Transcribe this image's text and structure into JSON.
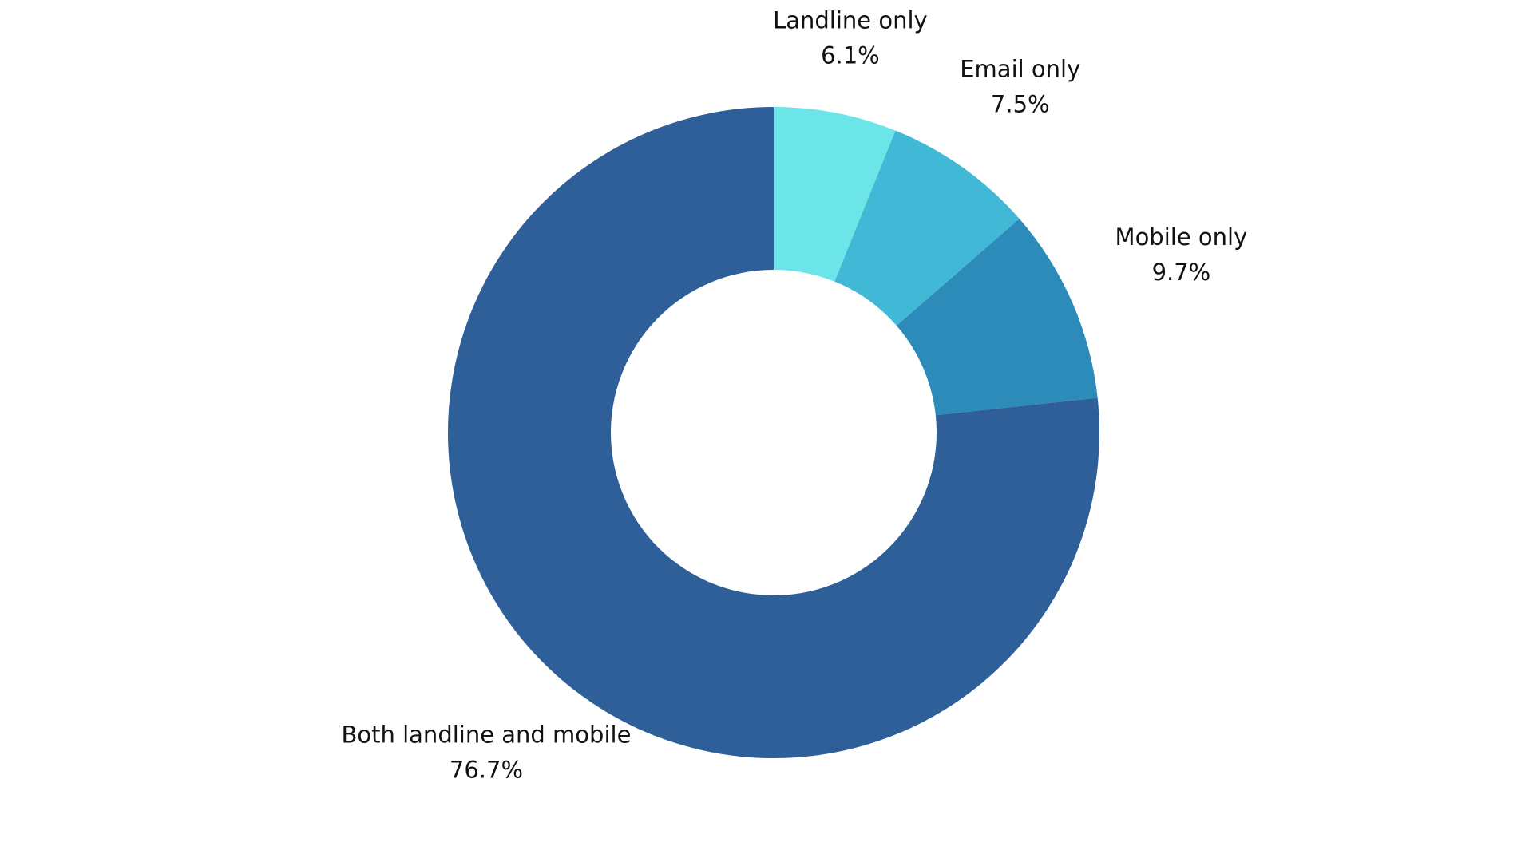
{
  "chart_data": {
    "type": "pie",
    "donut": true,
    "categories": [
      "Landline only",
      "Email only",
      "Mobile only",
      "Both landline and mobile"
    ],
    "values": [
      6.1,
      7.5,
      9.7,
      76.7
    ],
    "value_labels": [
      "6.1%",
      "7.5%",
      "9.7%",
      "76.7%"
    ],
    "colors": [
      "#6ce5e8",
      "#41b8d5",
      "#2d8bba",
      "#2f5f98"
    ]
  }
}
